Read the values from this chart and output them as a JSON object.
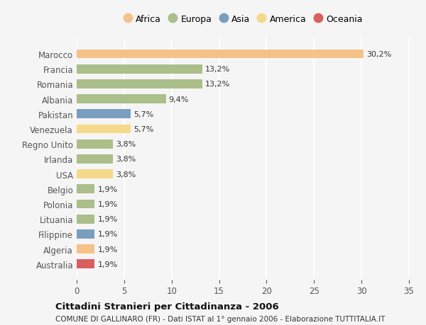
{
  "countries": [
    "Marocco",
    "Francia",
    "Romania",
    "Albania",
    "Pakistan",
    "Venezuela",
    "Regno Unito",
    "Irlanda",
    "USA",
    "Belgio",
    "Polonia",
    "Lituania",
    "Filippine",
    "Algeria",
    "Australia"
  ],
  "values": [
    30.2,
    13.2,
    13.2,
    9.4,
    5.7,
    5.7,
    3.8,
    3.8,
    3.8,
    1.9,
    1.9,
    1.9,
    1.9,
    1.9,
    1.9
  ],
  "labels": [
    "30,2%",
    "13,2%",
    "13,2%",
    "9,4%",
    "5,7%",
    "5,7%",
    "3,8%",
    "3,8%",
    "3,8%",
    "1,9%",
    "1,9%",
    "1,9%",
    "1,9%",
    "1,9%",
    "1,9%"
  ],
  "bar_colors": [
    "#F5C28A",
    "#AABF8A",
    "#AABF8A",
    "#AABF8A",
    "#7A9EBF",
    "#F5D98A",
    "#AABF8A",
    "#AABF8A",
    "#F5D98A",
    "#AABF8A",
    "#AABF8A",
    "#AABF8A",
    "#7A9EBF",
    "#F5C28A",
    "#D95F5F"
  ],
  "continent_colors": {
    "Africa": "#F5C28A",
    "Europa": "#AABF8A",
    "Asia": "#7A9EBF",
    "America": "#F5D98A",
    "Oceania": "#D95F5F"
  },
  "xlim": [
    0,
    35
  ],
  "xticks": [
    0,
    5,
    10,
    15,
    20,
    25,
    30,
    35
  ],
  "title": "Cittadini Stranieri per Cittadinanza - 2006",
  "subtitle": "COMUNE DI GALLINARO (FR) - Dati ISTAT al 1° gennaio 2006 - Elaborazione TUTTITALIA.IT",
  "background_color": "#f5f5f5",
  "bar_height": 0.6,
  "grid_color": "#ffffff",
  "legend_labels": [
    "Africa",
    "Europa",
    "Asia",
    "America",
    "Oceania"
  ]
}
